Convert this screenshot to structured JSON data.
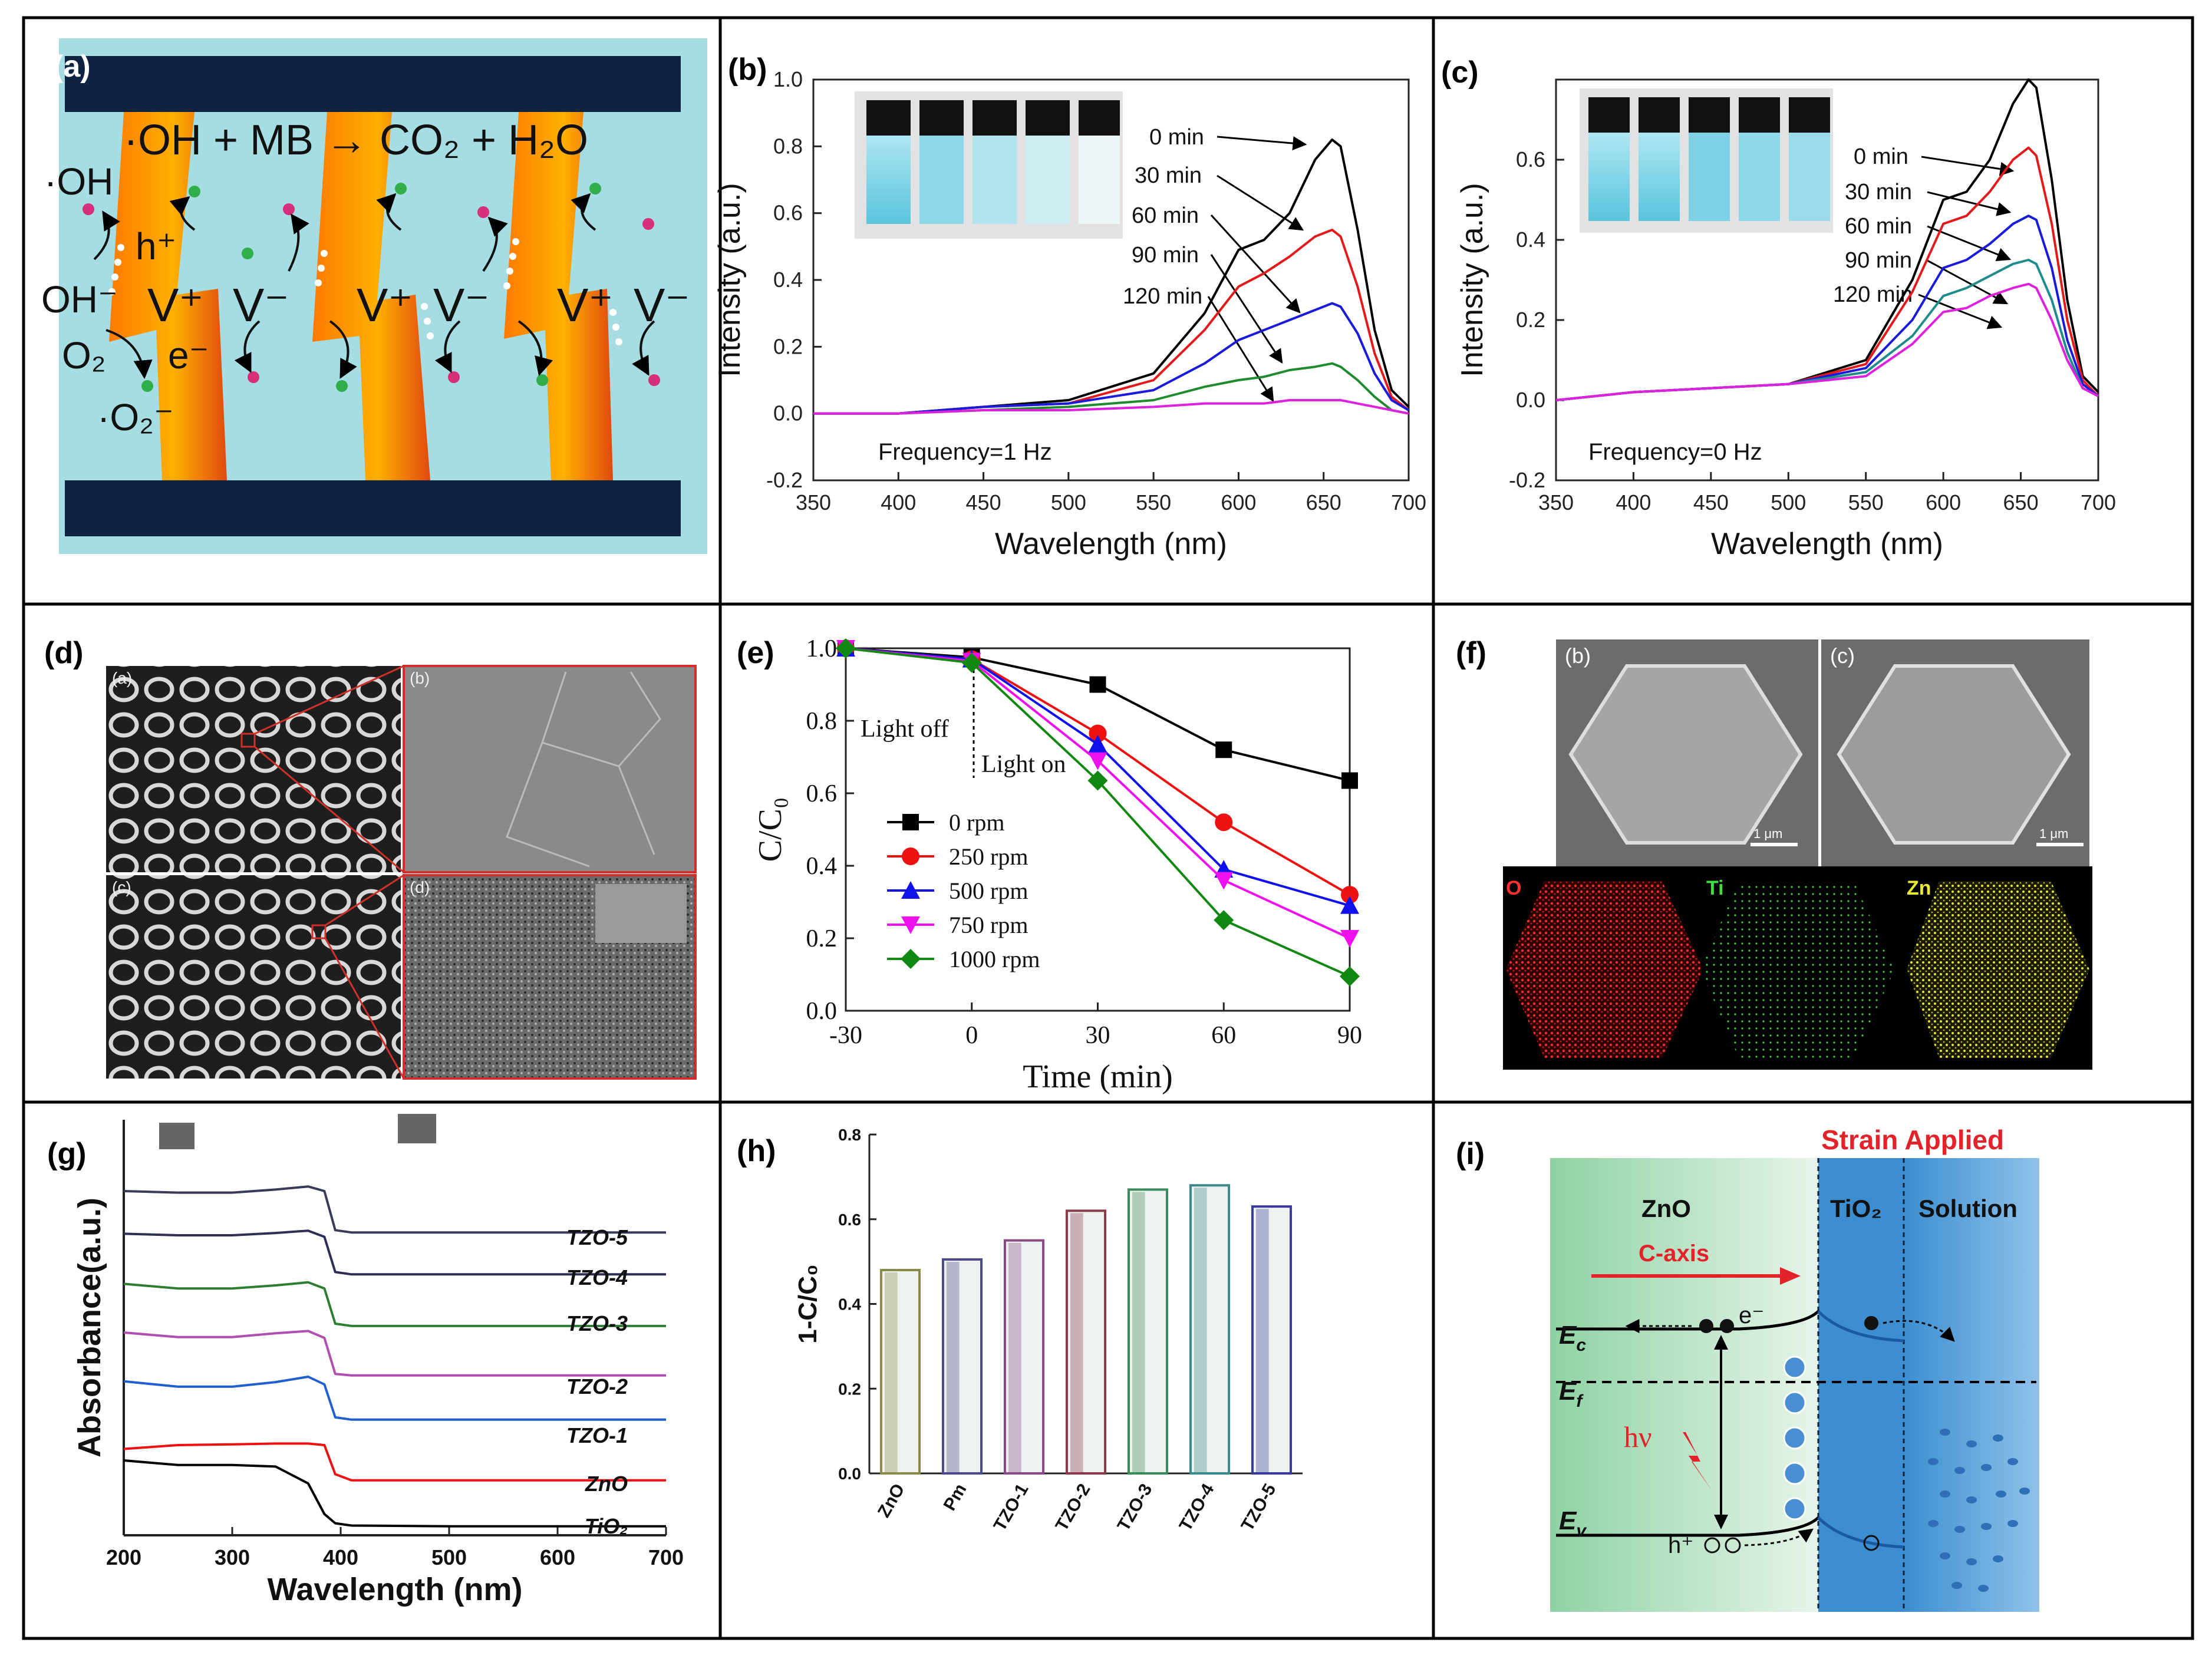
{
  "panels": {
    "a": {
      "label": "(a)",
      "reaction": "·OH + MB → CO₂ + H₂O",
      "oh_radical": "·OH",
      "hole": "h⁺",
      "hydroxide": "OH⁻",
      "oxygen": "O₂",
      "electron": "e⁻",
      "superoxide": "·O₂⁻",
      "v_plus": "V⁺",
      "v_minus": "V⁻"
    },
    "b": {
      "label": "(b)",
      "frequency": "Frequency=1 Hz",
      "time_labels": [
        "0 min",
        "30 min",
        "60 min",
        "90 min",
        "120 min"
      ]
    },
    "c": {
      "label": "(c)",
      "frequency": "Frequency=0 Hz",
      "time_labels": [
        "0 min",
        "30 min",
        "60 min",
        "90 min",
        "120 min"
      ]
    },
    "d": {
      "label": "(d)",
      "subpanels": [
        "(a)",
        "(b)",
        "(c)",
        "(d)"
      ]
    },
    "e": {
      "label": "(e)",
      "light_off": "Light off",
      "light_on": "Light on"
    },
    "f": {
      "label": "(f)",
      "subpanels": [
        "(b)",
        "(c)"
      ],
      "scalebar": "1 μm",
      "elements": [
        "O",
        "Ti",
        "Zn"
      ]
    },
    "g": {
      "label": "(g)"
    },
    "h": {
      "label": "(h)"
    },
    "i": {
      "label": "(i)",
      "strain": "Strain Applied",
      "zno": "ZnO",
      "tio2": "TiO₂",
      "solution": "Solution",
      "caxis": "C-axis",
      "ec": "E",
      "ec_sub": "c",
      "ef": "E",
      "ef_sub": "f",
      "ev": "E",
      "ev_sub": "v",
      "hv": "hν",
      "electron": "e⁻",
      "hole": "h⁺",
      "colors": {
        "strain": "#e2242a",
        "green_bg": "#a7d8b4",
        "blue_bg": "#3f8fce"
      }
    }
  },
  "chart_data": [
    {
      "id": "b",
      "type": "line",
      "xlabel": "Wavelength (nm)",
      "ylabel": "Intensity (a.u.)",
      "xlim": [
        350,
        700
      ],
      "ylim": [
        -0.2,
        1.0
      ],
      "xticks": [
        350,
        400,
        450,
        500,
        550,
        600,
        650,
        700
      ],
      "yticks": [
        -0.2,
        0.0,
        0.2,
        0.4,
        0.6,
        0.8,
        1.0
      ],
      "x": [
        350,
        400,
        450,
        500,
        550,
        580,
        600,
        615,
        630,
        645,
        655,
        660,
        670,
        680,
        690,
        700
      ],
      "series": [
        {
          "name": "0 min",
          "color": "#000000",
          "values": [
            0.0,
            0.0,
            0.02,
            0.04,
            0.12,
            0.3,
            0.49,
            0.52,
            0.6,
            0.76,
            0.82,
            0.8,
            0.55,
            0.25,
            0.07,
            0.02
          ]
        },
        {
          "name": "30 min",
          "color": "#e31a1c",
          "values": [
            0.0,
            0.0,
            0.02,
            0.03,
            0.1,
            0.25,
            0.38,
            0.42,
            0.47,
            0.53,
            0.55,
            0.53,
            0.38,
            0.18,
            0.05,
            0.01
          ]
        },
        {
          "name": "60 min",
          "color": "#1a1adb",
          "values": [
            0.0,
            0.0,
            0.02,
            0.03,
            0.07,
            0.15,
            0.22,
            0.25,
            0.28,
            0.31,
            0.33,
            0.32,
            0.24,
            0.12,
            0.04,
            0.01
          ]
        },
        {
          "name": "90 min",
          "color": "#1f8b2e",
          "values": [
            0.0,
            0.0,
            0.01,
            0.02,
            0.04,
            0.08,
            0.1,
            0.11,
            0.13,
            0.14,
            0.15,
            0.14,
            0.1,
            0.05,
            0.01,
            0.0
          ]
        },
        {
          "name": "120 min",
          "color": "#dd22dd",
          "values": [
            0.0,
            0.0,
            0.01,
            0.01,
            0.02,
            0.03,
            0.03,
            0.03,
            0.04,
            0.04,
            0.04,
            0.04,
            0.03,
            0.02,
            0.01,
            0.0
          ]
        }
      ]
    },
    {
      "id": "c",
      "type": "line",
      "xlabel": "Wavelength (nm)",
      "ylabel": "Intensity (a.u.)",
      "xlim": [
        350,
        700
      ],
      "ylim": [
        -0.2,
        0.8
      ],
      "xticks": [
        350,
        400,
        450,
        500,
        550,
        600,
        650,
        700
      ],
      "yticks": [
        -0.2,
        0.0,
        0.2,
        0.4,
        0.6
      ],
      "x": [
        350,
        400,
        450,
        500,
        550,
        580,
        600,
        615,
        630,
        645,
        655,
        660,
        670,
        680,
        690,
        700
      ],
      "series": [
        {
          "name": "0 min",
          "color": "#000000",
          "values": [
            0.0,
            0.02,
            0.03,
            0.04,
            0.1,
            0.3,
            0.5,
            0.52,
            0.6,
            0.74,
            0.8,
            0.78,
            0.55,
            0.25,
            0.06,
            0.02
          ]
        },
        {
          "name": "30 min",
          "color": "#e31a1c",
          "values": [
            0.0,
            0.02,
            0.03,
            0.04,
            0.09,
            0.27,
            0.44,
            0.46,
            0.52,
            0.6,
            0.63,
            0.61,
            0.44,
            0.2,
            0.05,
            0.01
          ]
        },
        {
          "name": "60 min",
          "color": "#1a1adb",
          "values": [
            0.0,
            0.02,
            0.03,
            0.04,
            0.08,
            0.2,
            0.33,
            0.35,
            0.39,
            0.44,
            0.46,
            0.45,
            0.33,
            0.15,
            0.04,
            0.01
          ]
        },
        {
          "name": "90 min",
          "color": "#1f8b8b",
          "values": [
            0.0,
            0.02,
            0.03,
            0.04,
            0.07,
            0.16,
            0.26,
            0.28,
            0.31,
            0.34,
            0.35,
            0.34,
            0.25,
            0.12,
            0.03,
            0.01
          ]
        },
        {
          "name": "120 min",
          "color": "#dd22dd",
          "values": [
            0.0,
            0.02,
            0.03,
            0.04,
            0.06,
            0.14,
            0.22,
            0.23,
            0.26,
            0.28,
            0.29,
            0.28,
            0.2,
            0.1,
            0.03,
            0.01
          ]
        }
      ]
    },
    {
      "id": "e",
      "type": "line",
      "xlabel": "Time (min)",
      "ylabel": "C/C₀",
      "xlim": [
        -30,
        90
      ],
      "ylim": [
        0.0,
        1.0
      ],
      "xticks": [
        -30,
        0,
        30,
        60,
        90
      ],
      "yticks": [
        0.0,
        0.2,
        0.4,
        0.6,
        0.8,
        1.0
      ],
      "x": [
        -30,
        0,
        30,
        60,
        90
      ],
      "series": [
        {
          "name": "0 rpm",
          "color": "#000000",
          "marker": "square",
          "values": [
            1.0,
            0.975,
            0.9,
            0.72,
            0.635
          ]
        },
        {
          "name": "250 rpm",
          "color": "#ee1111",
          "marker": "circle",
          "values": [
            1.0,
            0.97,
            0.765,
            0.52,
            0.32
          ]
        },
        {
          "name": "500 rpm",
          "color": "#1111ee",
          "marker": "triangle-up",
          "values": [
            1.0,
            0.97,
            0.735,
            0.39,
            0.29
          ]
        },
        {
          "name": "750 rpm",
          "color": "#ee11ee",
          "marker": "triangle-down",
          "values": [
            1.0,
            0.965,
            0.69,
            0.36,
            0.2
          ]
        },
        {
          "name": "1000 rpm",
          "color": "#118811",
          "marker": "diamond",
          "values": [
            1.0,
            0.96,
            0.635,
            0.25,
            0.095
          ]
        }
      ]
    },
    {
      "id": "g",
      "type": "line",
      "xlabel": "Wavelength (nm)",
      "ylabel": "Absorbance(a.u.)",
      "xlim": [
        200,
        700
      ],
      "xticks": [
        200,
        300,
        400,
        500,
        600,
        700
      ],
      "x": [
        200,
        250,
        300,
        340,
        370,
        385,
        395,
        410,
        500,
        600,
        700
      ],
      "series": [
        {
          "name": "TiO₂",
          "color": "#000000",
          "values": [
            0.9,
            0.84,
            0.84,
            0.82,
            0.6,
            0.2,
            0.08,
            0.05,
            0.04,
            0.04,
            0.04
          ]
        },
        {
          "name": "ZnO",
          "color": "#ee1111",
          "values": [
            0.55,
            0.6,
            0.61,
            0.62,
            0.62,
            0.6,
            0.22,
            0.14,
            0.14,
            0.14,
            0.14
          ]
        },
        {
          "name": "TZO-1",
          "color": "#1f5fcf",
          "values": [
            0.74,
            0.67,
            0.67,
            0.73,
            0.8,
            0.7,
            0.27,
            0.24,
            0.24,
            0.24,
            0.24
          ]
        },
        {
          "name": "TZO-2",
          "color": "#b04fb0",
          "values": [
            0.8,
            0.74,
            0.74,
            0.79,
            0.82,
            0.73,
            0.26,
            0.24,
            0.24,
            0.24,
            0.24
          ]
        },
        {
          "name": "TZO-3",
          "color": "#2e7d32",
          "values": [
            0.82,
            0.76,
            0.76,
            0.8,
            0.84,
            0.76,
            0.3,
            0.27,
            0.27,
            0.27,
            0.27
          ]
        },
        {
          "name": "TZO-4",
          "color": "#2f2f55",
          "values": [
            0.82,
            0.8,
            0.8,
            0.83,
            0.86,
            0.78,
            0.32,
            0.29,
            0.29,
            0.29,
            0.29
          ]
        },
        {
          "name": "TZO-5",
          "color": "#3a3a5a",
          "values": [
            0.8,
            0.78,
            0.78,
            0.82,
            0.86,
            0.8,
            0.29,
            0.26,
            0.26,
            0.26,
            0.26
          ]
        }
      ]
    },
    {
      "id": "h",
      "type": "bar",
      "xlabel": "",
      "ylabel": "1-C/C₀",
      "ylim": [
        0.0,
        0.8
      ],
      "yticks": [
        0.0,
        0.2,
        0.4,
        0.6,
        0.8
      ],
      "categories": [
        "ZnO",
        "Pm",
        "TZO-1",
        "TZO-2",
        "TZO-3",
        "TZO-4",
        "TZO-5"
      ],
      "values": [
        0.48,
        0.505,
        0.55,
        0.62,
        0.67,
        0.68,
        0.63
      ],
      "colors": [
        "#8a8a4a",
        "#4a4a8a",
        "#8a4a8a",
        "#8a3a4a",
        "#3a8a5a",
        "#3a8a8a",
        "#3a3a9a"
      ]
    }
  ]
}
